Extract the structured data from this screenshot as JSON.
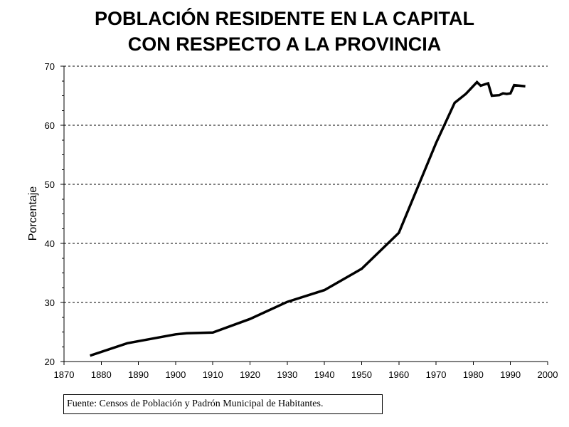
{
  "chart_data": {
    "type": "line",
    "title_lines": [
      "POBLACIÓN RESIDENTE EN LA CAPITAL",
      "CON RESPECTO A LA PROVINCIA"
    ],
    "xlabel": "",
    "ylabel": "Porcentaje",
    "xlim": [
      1870,
      2000
    ],
    "ylim": [
      20,
      70
    ],
    "x_ticks": [
      1870,
      1880,
      1890,
      1900,
      1910,
      1920,
      1930,
      1940,
      1950,
      1960,
      1970,
      1980,
      1990,
      2000
    ],
    "y_ticks": [
      20,
      30,
      40,
      50,
      60,
      70
    ],
    "grid": "horizontal dashed",
    "series": [
      {
        "x": [
          1877,
          1887,
          1900,
          1903,
          1910,
          1920,
          1930,
          1940,
          1950,
          1960,
          1970,
          1975,
          1978,
          1981,
          1982,
          1984,
          1985,
          1987,
          1988,
          1989,
          1990,
          1991,
          1994
        ],
        "values": [
          21.0,
          23.1,
          24.6,
          24.8,
          24.9,
          27.2,
          30.1,
          32.1,
          35.7,
          41.8,
          57.0,
          63.8,
          65.3,
          67.3,
          66.7,
          67.1,
          65.0,
          65.1,
          65.4,
          65.3,
          65.4,
          66.8,
          66.6
        ],
        "color": "#000000"
      }
    ]
  },
  "source_note": "Fuente: Censos de Población y Padrón Municipal de Habitantes."
}
